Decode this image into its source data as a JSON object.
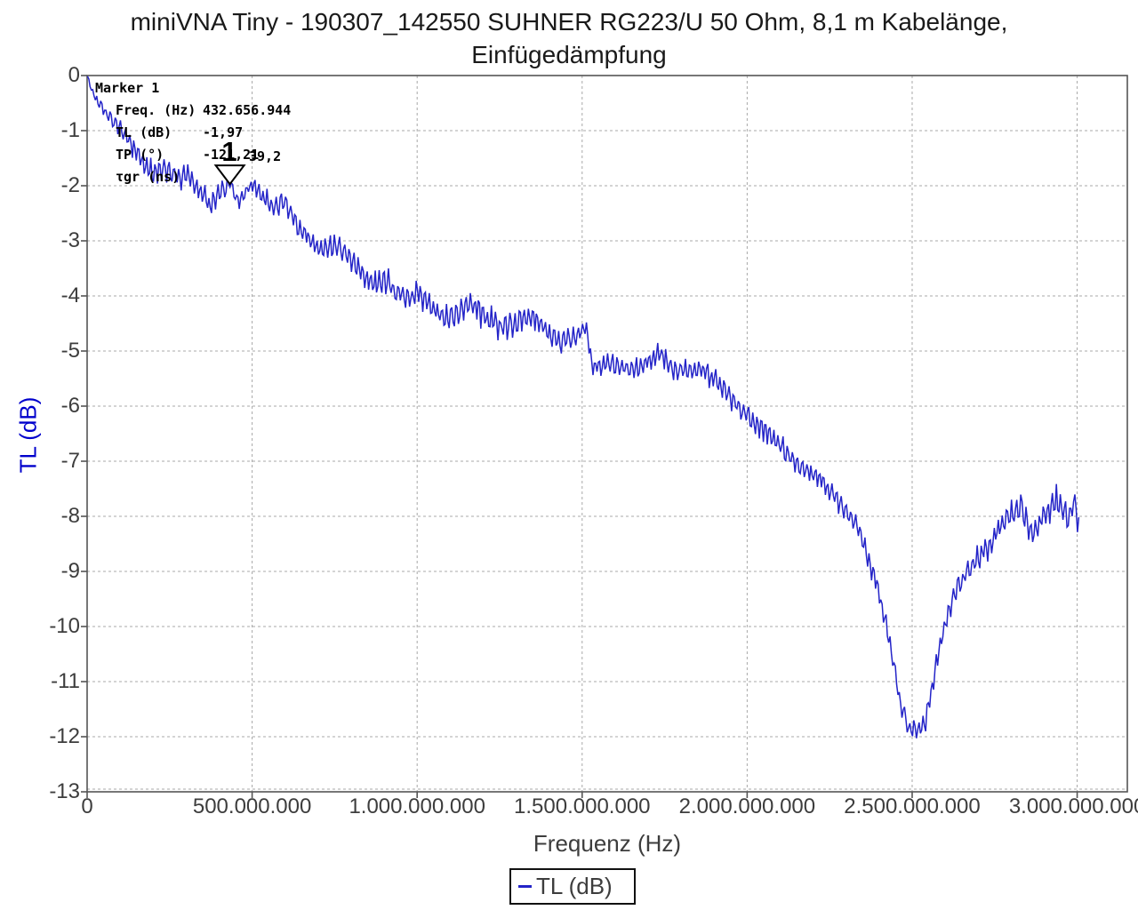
{
  "title": {
    "line1": "miniVNA Tiny - 190307_142550 SUHNER RG223/U 50 Ohm, 8,1 m Kabelänge,",
    "line2": "Einfügedämpfung"
  },
  "marker": {
    "title": "Marker 1",
    "number": "1",
    "freq_mhz": 432.657,
    "tl_db": -1.97,
    "rows": [
      {
        "label": "Freq. (Hz)",
        "value": "432.656.944"
      },
      {
        "label": "TL (dB)",
        "value": "-1,97"
      },
      {
        "label": "TP (°)",
        "value": "-121,21"
      },
      {
        "label": "τgr (ns)",
        "value": "39,2"
      }
    ]
  },
  "colors": {
    "curve": "#2424c8",
    "y_axis_title": "#0000cc",
    "grid": "#a8a8a8",
    "border": "#555555",
    "tick": "#555555",
    "text": "#3d3d3d",
    "title_text": "#1a1a1a"
  },
  "chart_data": {
    "type": "line",
    "title": "miniVNA Tiny - 190307_142550 SUHNER RG223/U 50 Ohm, 8,1 m Kabelänge, Einfügedämpfung",
    "xlabel": "Frequenz (Hz)",
    "ylabel": "TL (dB)",
    "grid": true,
    "legend": {
      "label": "TL (dB)",
      "position": "bottom-center"
    },
    "xlim_mhz": [
      0,
      3152
    ],
    "ylim": [
      -13,
      0
    ],
    "x_ticks": [
      {
        "value_mhz": 0,
        "label": "0"
      },
      {
        "value_mhz": 500,
        "label": "500.000.000"
      },
      {
        "value_mhz": 1000,
        "label": "1.000.000.000"
      },
      {
        "value_mhz": 1500,
        "label": "1.500.000.000"
      },
      {
        "value_mhz": 2000,
        "label": "2.000.000.000"
      },
      {
        "value_mhz": 2500,
        "label": "2.500.000.000"
      },
      {
        "value_mhz": 3000,
        "label": "3.000.000.000"
      }
    ],
    "y_ticks": [
      0,
      -1,
      -2,
      -3,
      -4,
      -5,
      -6,
      -7,
      -8,
      -9,
      -10,
      -11,
      -12,
      -13
    ],
    "series": [
      {
        "name": "TL (dB)",
        "color": "#2424c8",
        "freq_range_mhz": [
          1,
          3005
        ],
        "trend_points_mhz_db": [
          [
            1,
            0
          ],
          [
            15,
            -0.3
          ],
          [
            40,
            -0.55
          ],
          [
            70,
            -0.75
          ],
          [
            100,
            -0.95
          ],
          [
            130,
            -1.2
          ],
          [
            165,
            -1.55
          ],
          [
            200,
            -1.8
          ],
          [
            235,
            -1.65
          ],
          [
            270,
            -1.85
          ],
          [
            300,
            -1.75
          ],
          [
            340,
            -2.1
          ],
          [
            375,
            -2.35
          ],
          [
            410,
            -2.1
          ],
          [
            433,
            -1.97
          ],
          [
            460,
            -2.3
          ],
          [
            500,
            -1.95
          ],
          [
            530,
            -2.2
          ],
          [
            565,
            -2.4
          ],
          [
            600,
            -2.3
          ],
          [
            640,
            -2.75
          ],
          [
            690,
            -3.05
          ],
          [
            720,
            -3.2
          ],
          [
            750,
            -3.05
          ],
          [
            790,
            -3.3
          ],
          [
            830,
            -3.55
          ],
          [
            870,
            -3.8
          ],
          [
            900,
            -3.7
          ],
          [
            940,
            -3.95
          ],
          [
            970,
            -4.05
          ],
          [
            1000,
            -3.95
          ],
          [
            1040,
            -4.15
          ],
          [
            1080,
            -4.4
          ],
          [
            1120,
            -4.35
          ],
          [
            1160,
            -4.15
          ],
          [
            1200,
            -4.35
          ],
          [
            1250,
            -4.55
          ],
          [
            1300,
            -4.5
          ],
          [
            1345,
            -4.35
          ],
          [
            1400,
            -4.7
          ],
          [
            1440,
            -4.85
          ],
          [
            1480,
            -4.7
          ],
          [
            1512,
            -4.6
          ],
          [
            1530,
            -5.3
          ],
          [
            1570,
            -5.2
          ],
          [
            1620,
            -5.3
          ],
          [
            1660,
            -5.35
          ],
          [
            1700,
            -5.15
          ],
          [
            1740,
            -5.05
          ],
          [
            1780,
            -5.35
          ],
          [
            1860,
            -5.35
          ],
          [
            1900,
            -5.5
          ],
          [
            1940,
            -5.75
          ],
          [
            1970,
            -6.0
          ],
          [
            2000,
            -6.2
          ],
          [
            2050,
            -6.4
          ],
          [
            2100,
            -6.7
          ],
          [
            2140,
            -7.0
          ],
          [
            2180,
            -7.15
          ],
          [
            2220,
            -7.3
          ],
          [
            2260,
            -7.6
          ],
          [
            2300,
            -7.95
          ],
          [
            2340,
            -8.25
          ],
          [
            2365,
            -8.75
          ],
          [
            2395,
            -9.3
          ],
          [
            2420,
            -9.9
          ],
          [
            2445,
            -10.7
          ],
          [
            2465,
            -11.4
          ],
          [
            2490,
            -11.85
          ],
          [
            2515,
            -11.9
          ],
          [
            2540,
            -11.75
          ],
          [
            2555,
            -11.3
          ],
          [
            2575,
            -10.6
          ],
          [
            2600,
            -9.9
          ],
          [
            2630,
            -9.4
          ],
          [
            2660,
            -9.05
          ],
          [
            2700,
            -8.75
          ],
          [
            2740,
            -8.5
          ],
          [
            2770,
            -8.15
          ],
          [
            2805,
            -7.95
          ],
          [
            2830,
            -7.8
          ],
          [
            2860,
            -8.35
          ],
          [
            2880,
            -8.15
          ],
          [
            2905,
            -7.95
          ],
          [
            2930,
            -7.75
          ],
          [
            2955,
            -7.8
          ],
          [
            2975,
            -8.0
          ],
          [
            2990,
            -7.75
          ],
          [
            3005,
            -8.15
          ]
        ],
        "noise_halfband_db_points": [
          [
            1,
            0.05
          ],
          [
            60,
            0.14
          ],
          [
            150,
            0.22
          ],
          [
            300,
            0.25
          ],
          [
            430,
            0.2
          ],
          [
            600,
            0.22
          ],
          [
            800,
            0.25
          ],
          [
            1000,
            0.26
          ],
          [
            1200,
            0.3
          ],
          [
            1400,
            0.24
          ],
          [
            1600,
            0.22
          ],
          [
            1800,
            0.22
          ],
          [
            2000,
            0.24
          ],
          [
            2200,
            0.22
          ],
          [
            2350,
            0.22
          ],
          [
            2500,
            0.2
          ],
          [
            2650,
            0.24
          ],
          [
            2800,
            0.28
          ],
          [
            2950,
            0.32
          ],
          [
            3005,
            0.33
          ]
        ]
      }
    ]
  }
}
